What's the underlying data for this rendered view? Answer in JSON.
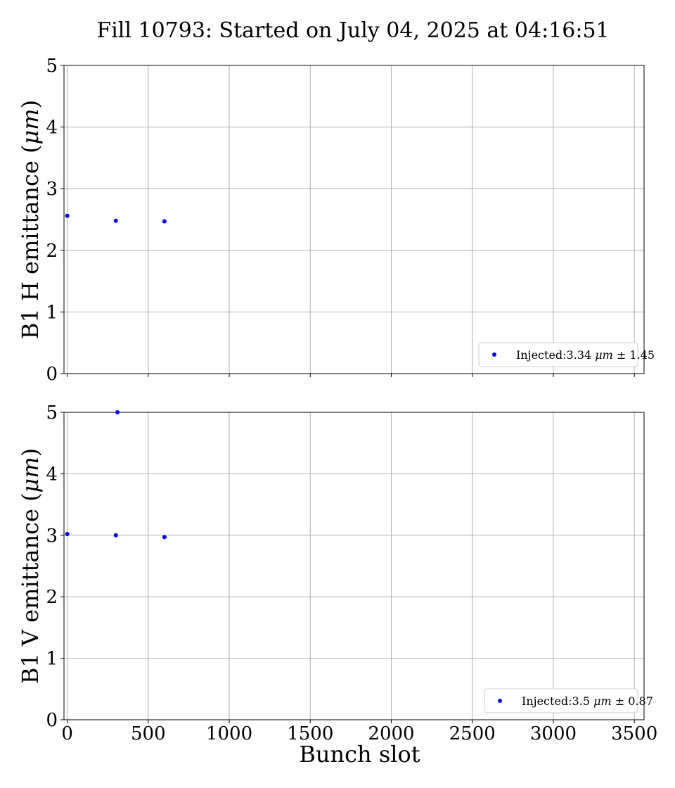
{
  "figure": {
    "title": "Fill 10793: Started on July 04, 2025 at 04:16:51"
  },
  "chart_data": [
    {
      "type": "scatter",
      "title": "",
      "xlabel": "",
      "ylabel_text": "B1 H emittance (",
      "ylabel_unit": "μm",
      "ylabel_close": ")",
      "xlim": [
        -20,
        3560
      ],
      "ylim": [
        0,
        5
      ],
      "yticks": [
        0,
        1,
        2,
        3,
        4,
        5
      ],
      "xticks": [
        0,
        500,
        1000,
        1500,
        2000,
        2500,
        3000,
        3500
      ],
      "show_xtick_labels": false,
      "grid": true,
      "legend_position": "lower-right",
      "series": [
        {
          "name_prefix": "Injected:3.34 ",
          "name_unit": "μm",
          "name_suffix": " ± 1.45",
          "color": "#0000ff",
          "points": [
            {
              "x": 0,
              "y": 2.56
            },
            {
              "x": 300,
              "y": 2.48
            },
            {
              "x": 600,
              "y": 2.47
            }
          ]
        }
      ]
    },
    {
      "type": "scatter",
      "title": "",
      "xlabel": "Bunch slot",
      "ylabel_text": "B1 V emittance (",
      "ylabel_unit": "μm",
      "ylabel_close": ")",
      "xlim": [
        -20,
        3560
      ],
      "ylim": [
        0,
        5
      ],
      "yticks": [
        0,
        1,
        2,
        3,
        4,
        5
      ],
      "xticks": [
        0,
        500,
        1000,
        1500,
        2000,
        2500,
        3000,
        3500
      ],
      "show_xtick_labels": true,
      "grid": true,
      "legend_position": "lower-right",
      "series": [
        {
          "name_prefix": "Injected:3.5 ",
          "name_unit": "μm",
          "name_suffix": " ± 0.87",
          "color": "#0000ff",
          "points": [
            {
              "x": 0,
              "y": 3.02
            },
            {
              "x": 300,
              "y": 3.0
            },
            {
              "x": 310,
              "y": 5.0
            },
            {
              "x": 600,
              "y": 2.97
            }
          ]
        }
      ]
    }
  ]
}
